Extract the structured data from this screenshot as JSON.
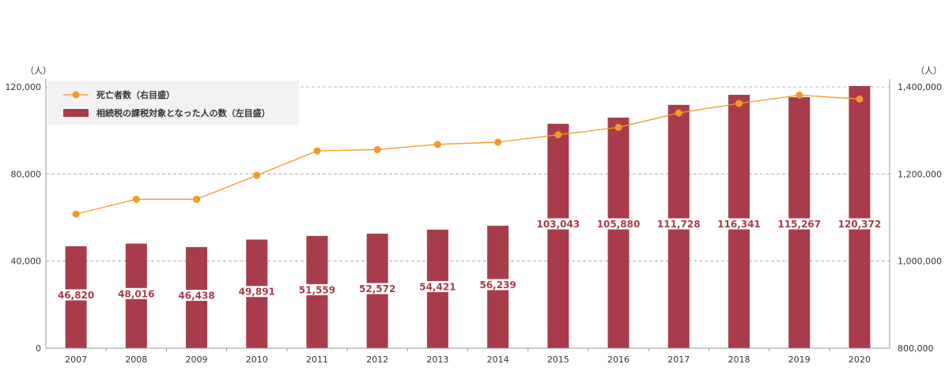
{
  "chart_data": {
    "type": "bar",
    "categories": [
      "2007",
      "2008",
      "2009",
      "2010",
      "2011",
      "2012",
      "2013",
      "2014",
      "2015",
      "2016",
      "2017",
      "2018",
      "2019",
      "2020"
    ],
    "series": [
      {
        "name": "相続税の課税対象となった人の数（左目盛）",
        "type": "bar",
        "axis": "left",
        "values": [
          46820,
          48016,
          46438,
          49891,
          51559,
          52572,
          54421,
          56239,
          103043,
          105880,
          111728,
          116341,
          115267,
          120372
        ],
        "labels": [
          "46,820",
          "48,016",
          "46,438",
          "49,891",
          "51,559",
          "52,572",
          "54,421",
          "56,239",
          "103,043",
          "105,880",
          "111,728",
          "116,341",
          "115,267",
          "120,372"
        ],
        "color": "#a83c4a"
      },
      {
        "name": "死亡者数（右目盛）",
        "type": "line",
        "axis": "right",
        "values": [
          1108000,
          1142000,
          1142000,
          1197000,
          1253000,
          1256000,
          1268000,
          1273000,
          1290000,
          1307000,
          1340000,
          1362000,
          1381000,
          1372000
        ],
        "color": "#f39a26"
      }
    ],
    "left_axis": {
      "unit": "（人）",
      "ylim": [
        0,
        120000
      ],
      "ticks": [
        0,
        40000,
        80000,
        120000
      ],
      "tick_labels": [
        "0",
        "40,000",
        "80,000",
        "120,000"
      ]
    },
    "right_axis": {
      "unit": "（人）",
      "ylim": [
        800000,
        1400000
      ],
      "ticks": [
        800000,
        1000000,
        1200000,
        1400000
      ],
      "tick_labels": [
        "800,000",
        "1,000,000",
        "1,200,000",
        "1,400,000"
      ]
    },
    "grid": true,
    "legend_position": "top-left"
  },
  "colors": {
    "bar": "#a83c4a",
    "line": "#f39a26",
    "grid": "#bbbbbb",
    "legend_bg": "#f2f2f2"
  }
}
